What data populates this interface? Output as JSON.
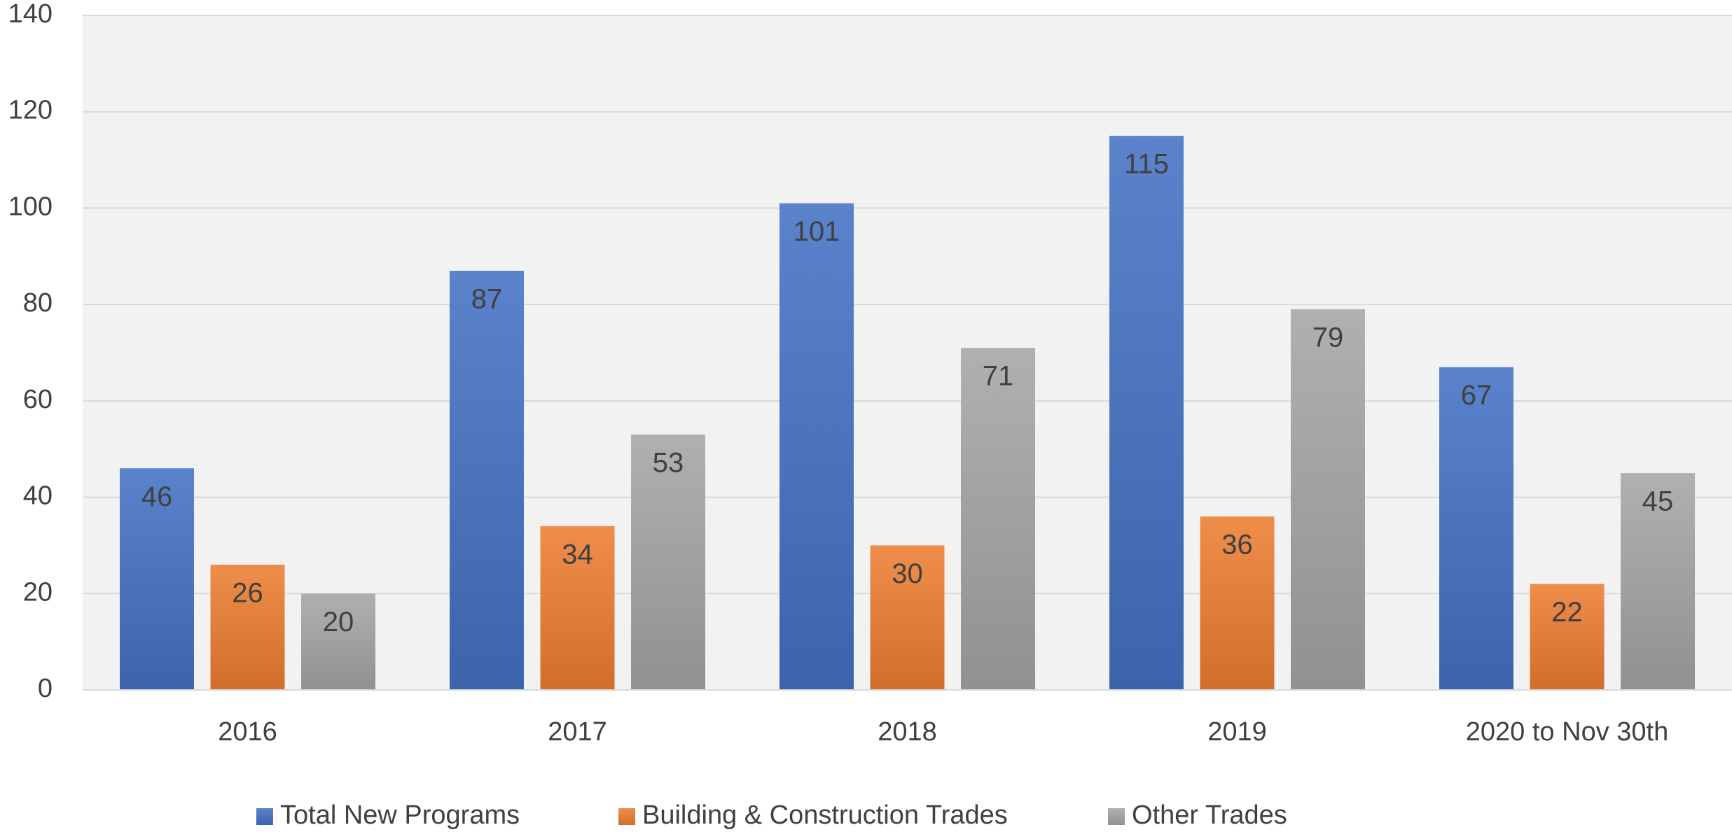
{
  "chart_data": {
    "type": "bar",
    "categories": [
      "2016",
      "2017",
      "2018",
      "2019",
      "2020 to Nov 30th"
    ],
    "series": [
      {
        "name": "Total New Programs",
        "color": "#4472c4",
        "values": [
          46,
          87,
          101,
          115,
          67
        ]
      },
      {
        "name": "Building & Construction Trades",
        "color": "#ed7d31",
        "values": [
          26,
          34,
          30,
          36,
          22
        ]
      },
      {
        "name": "Other Trades",
        "color": "#a5a5a5",
        "values": [
          20,
          53,
          71,
          79,
          45
        ]
      }
    ],
    "ylim": [
      0,
      140
    ],
    "yticks": [
      0,
      20,
      40,
      60,
      80,
      100,
      120,
      140
    ],
    "grid": true,
    "legend": "bottom"
  }
}
